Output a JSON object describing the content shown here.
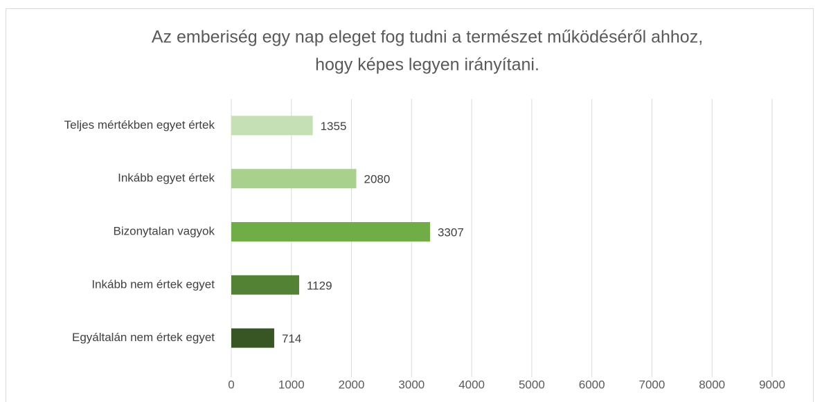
{
  "chart_data": {
    "type": "barh",
    "title": [
      "Az emberiség egy nap eleget fog tudni a természet működéséről ahhoz,",
      "hogy képes legyen irányítani."
    ],
    "categories": [
      "Teljes mértékben egyet értek",
      "Inkább egyet értek",
      "Bizonytalan vagyok",
      "Inkább nem értek egyet",
      "Egyáltalán nem értek egyet"
    ],
    "values": [
      1355,
      2080,
      3307,
      1129,
      714
    ],
    "colors": [
      "#c5e0b4",
      "#a9d18e",
      "#70ad47",
      "#548235",
      "#375623"
    ],
    "xlim": [
      0,
      9000
    ],
    "xticks": [
      0,
      1000,
      2000,
      3000,
      4000,
      5000,
      6000,
      7000,
      8000,
      9000
    ],
    "grid": true
  }
}
